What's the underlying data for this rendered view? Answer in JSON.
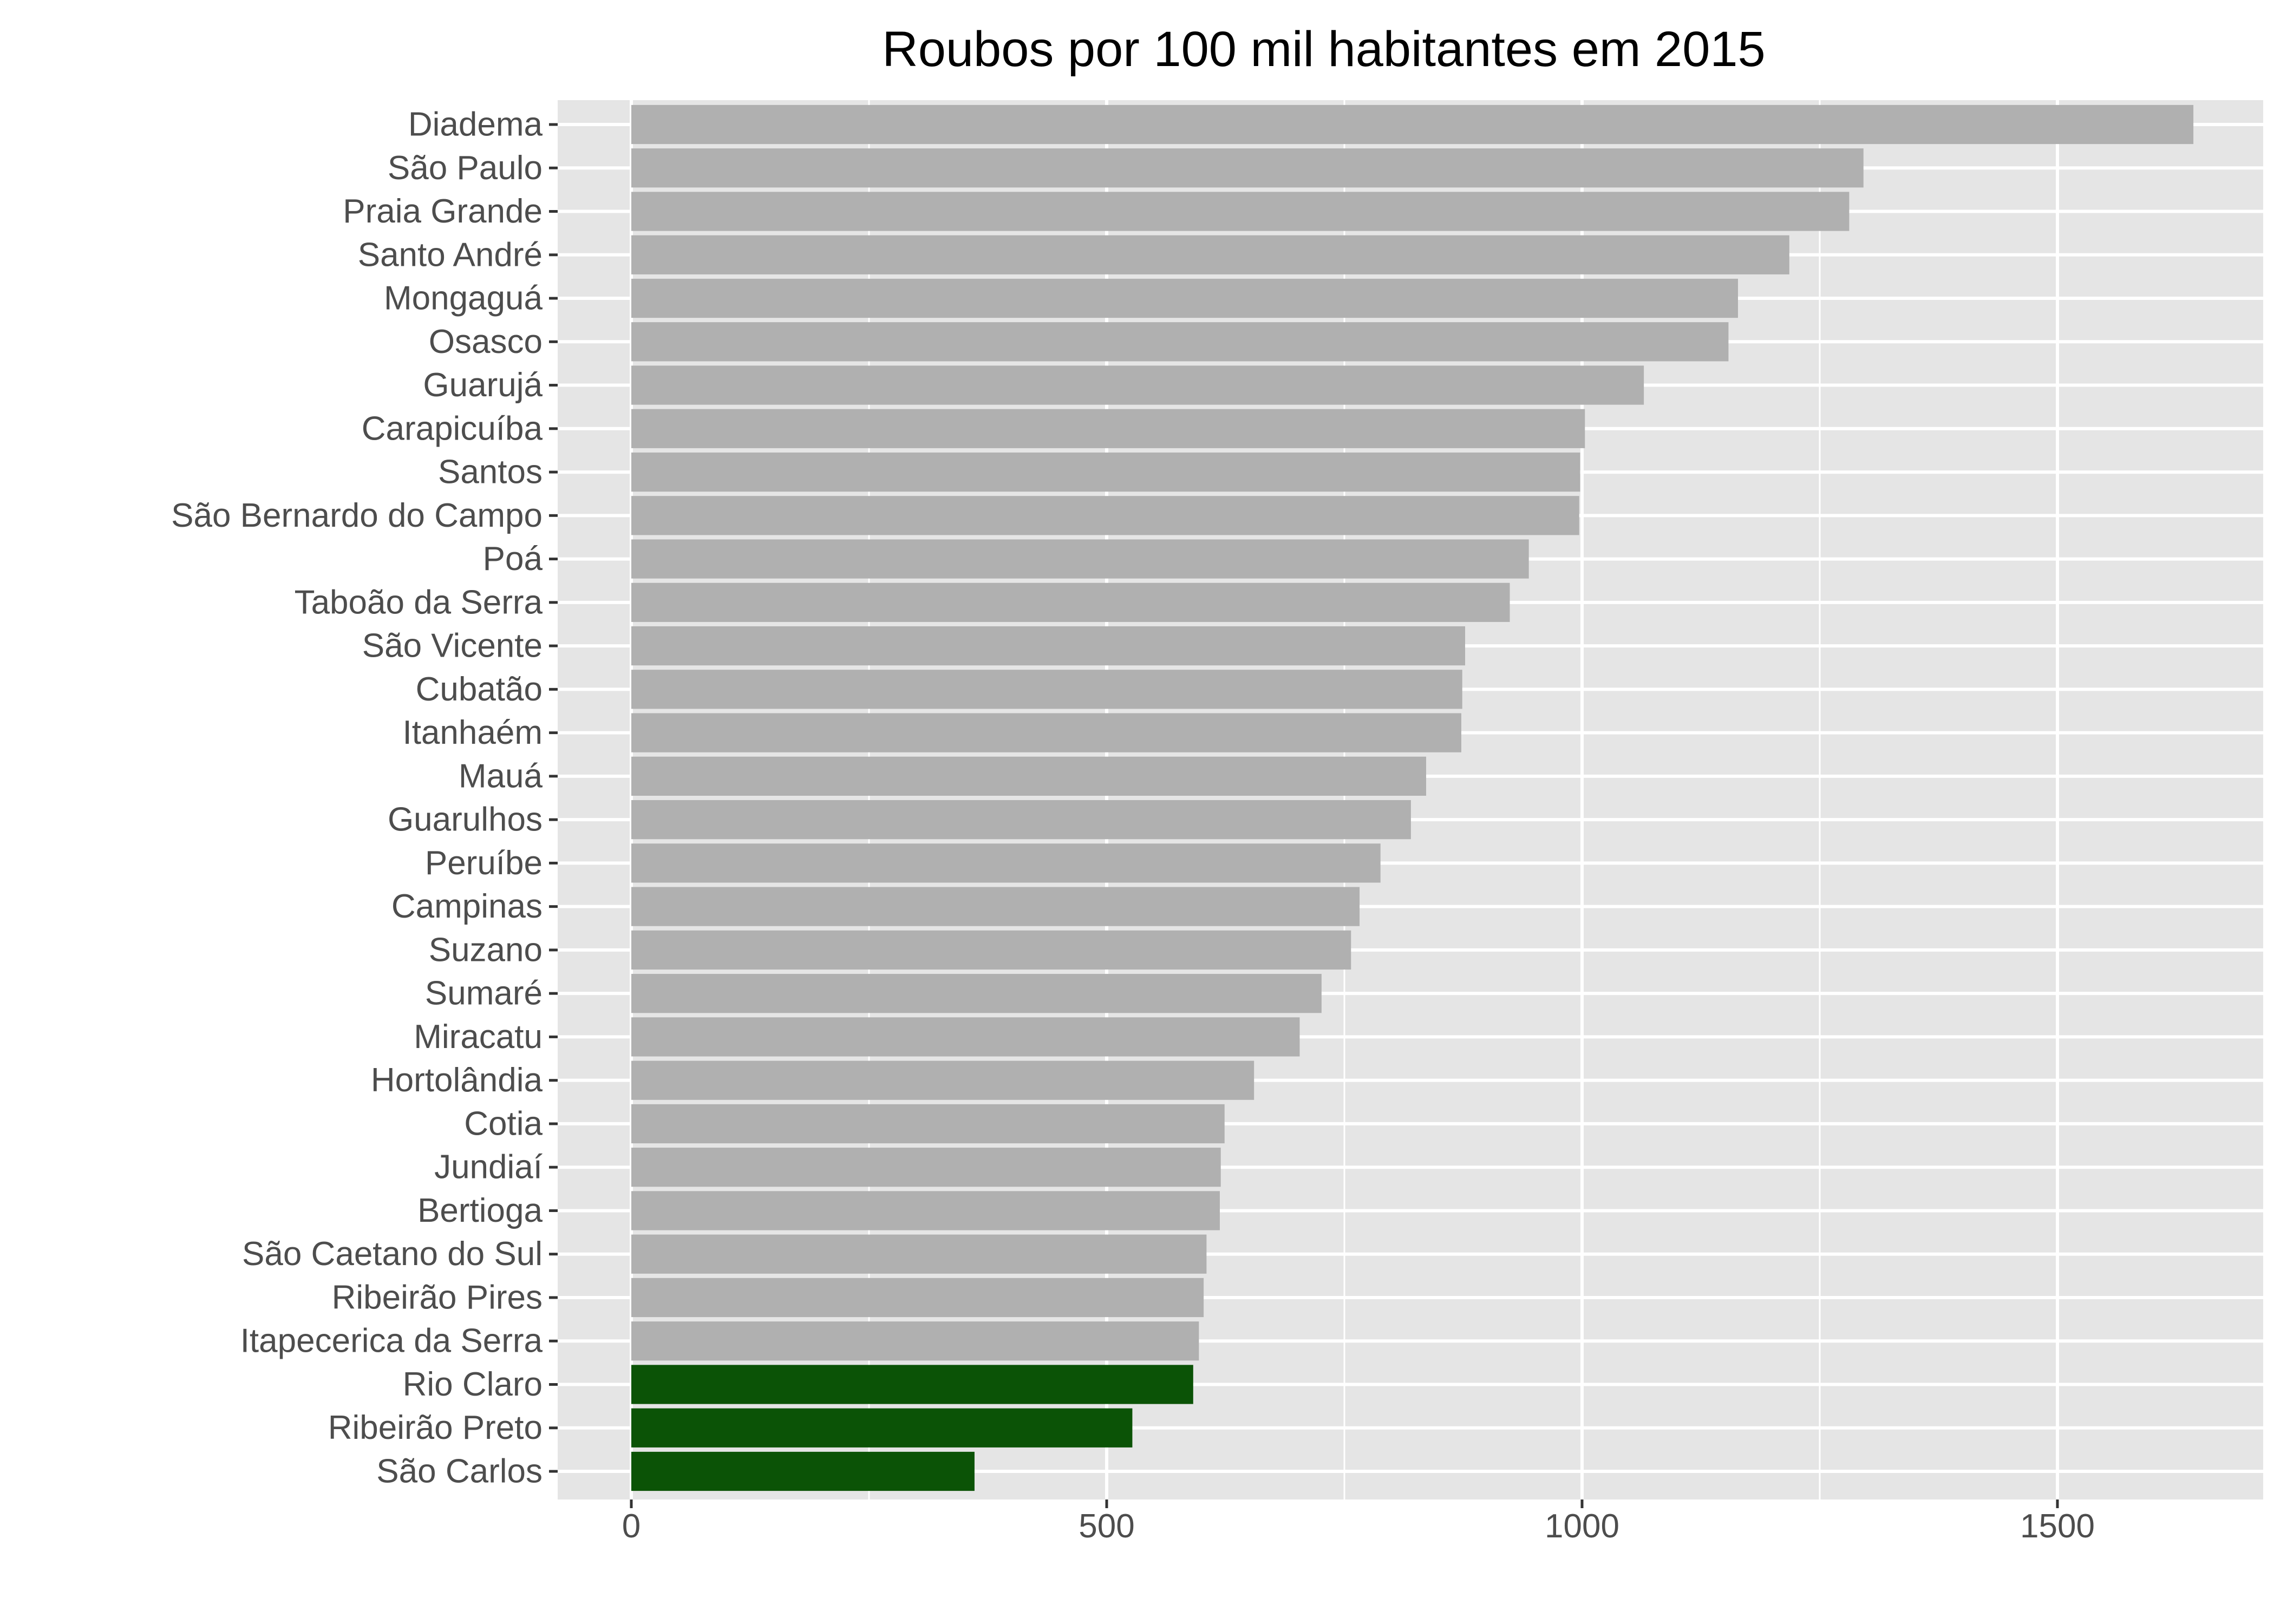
{
  "chart_data": {
    "type": "bar",
    "orientation": "horizontal",
    "title": "Roubos por 100 mil habitantes em 2015",
    "xlabel": "",
    "ylabel": "",
    "xlim": [
      -80,
      1720
    ],
    "x_ticks": [
      0,
      500,
      1000,
      1500
    ],
    "x_tick_labels": [
      "0",
      "500",
      "1000",
      "1500"
    ],
    "grid": true,
    "legend": "none",
    "colors": {
      "panel_background": "#e5e5e5",
      "gridline": "#ffffff",
      "bar_default": "#b0b0b0",
      "bar_highlight": "#0b5306",
      "tick_label": "#4d4d4d",
      "tick_mark": "#333333"
    },
    "categories": [
      "Diadema",
      "São Paulo",
      "Praia Grande",
      "Santo André",
      "Mongaguá",
      "Osasco",
      "Guarujá",
      "Carapicuíba",
      "Santos",
      "São Bernardo do Campo",
      "Poá",
      "Taboão da Serra",
      "São Vicente",
      "Cubatão",
      "Itanhaém",
      "Mauá",
      "Guarulhos",
      "Peruíbe",
      "Campinas",
      "Suzano",
      "Sumaré",
      "Miracatu",
      "Hortolândia",
      "Cotia",
      "Jundiaí",
      "Bertioga",
      "São Caetano do Sul",
      "Ribeirão Pires",
      "Itapecerica da Serra",
      "Rio Claro",
      "Ribeirão Preto",
      "São Carlos"
    ],
    "values": [
      1643,
      1296,
      1281,
      1218,
      1164,
      1154,
      1065,
      1003,
      998,
      997,
      944,
      924,
      877,
      874,
      873,
      836,
      820,
      788,
      766,
      757,
      726,
      703,
      655,
      624,
      620,
      619,
      605,
      602,
      597,
      591,
      527,
      361
    ],
    "highlighted": [
      "Rio Claro",
      "Ribeirão Preto",
      "São Carlos"
    ]
  }
}
